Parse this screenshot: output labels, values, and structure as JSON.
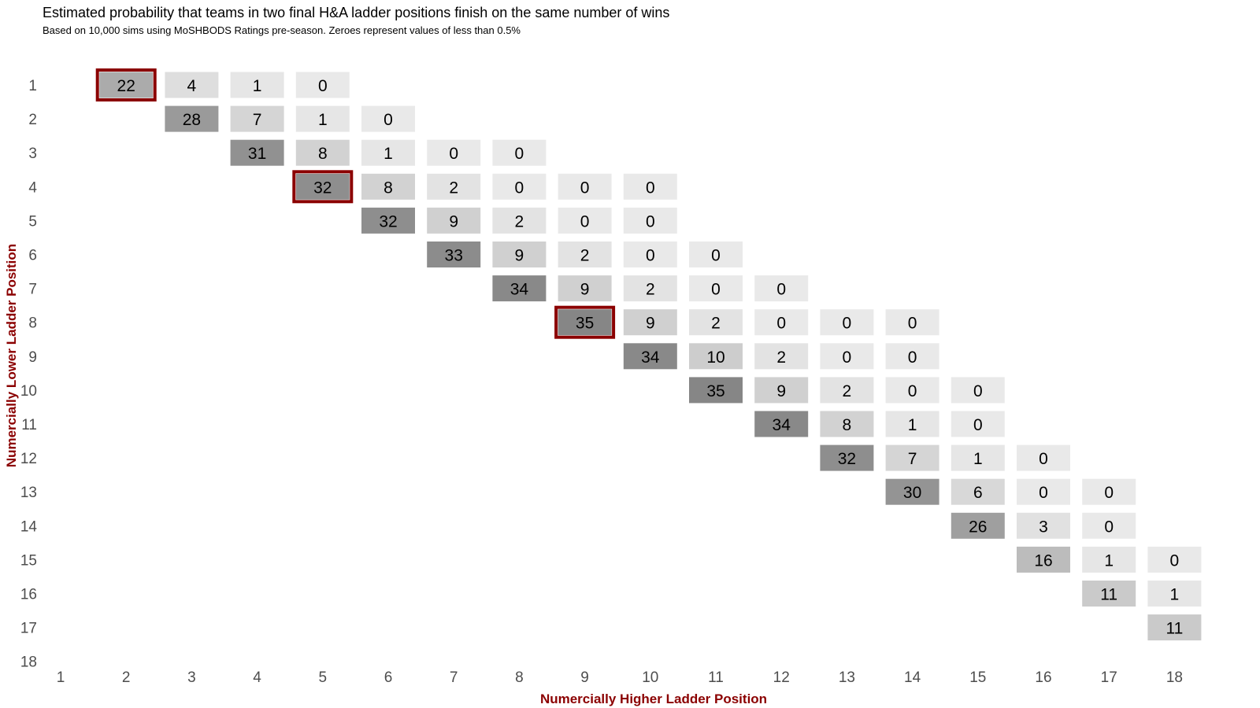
{
  "title": "Estimated probability that teams in two final H&A ladder positions finish on the same number of wins",
  "subtitle": "Based on 10,000 sims using MoSHBODS Ratings pre-season. Zeroes represent values of less than 0.5%",
  "colors": {
    "highlight_border": "#8b0000",
    "axis_title": "#8b0000",
    "tick_text": "#4d4d4d",
    "tile_light": "#e8e8e8",
    "tile_dark": "#868686"
  },
  "chart_data": {
    "type": "heatmap",
    "title": "Estimated probability that teams in two final H&A ladder positions finish on the same number of wins",
    "subtitle": "Based on 10,000 sims using MoSHBODS Ratings pre-season. Zeroes represent values of less than 0.5%",
    "xlabel": "Numercially Higher Ladder Position",
    "ylabel": "Numercially Lower Ladder Position",
    "x_categories": [
      "1",
      "2",
      "3",
      "4",
      "5",
      "6",
      "7",
      "8",
      "9",
      "10",
      "11",
      "12",
      "13",
      "14",
      "15",
      "16",
      "17",
      "18"
    ],
    "y_categories": [
      "1",
      "2",
      "3",
      "4",
      "5",
      "6",
      "7",
      "8",
      "9",
      "10",
      "11",
      "12",
      "13",
      "14",
      "15",
      "16",
      "17",
      "18"
    ],
    "grid": false,
    "legend": "none",
    "cells": [
      {
        "row": 1,
        "col": 2,
        "value": 22,
        "highlight": true
      },
      {
        "row": 1,
        "col": 3,
        "value": 4
      },
      {
        "row": 1,
        "col": 4,
        "value": 1
      },
      {
        "row": 1,
        "col": 5,
        "value": 0
      },
      {
        "row": 2,
        "col": 3,
        "value": 28
      },
      {
        "row": 2,
        "col": 4,
        "value": 7
      },
      {
        "row": 2,
        "col": 5,
        "value": 1
      },
      {
        "row": 2,
        "col": 6,
        "value": 0
      },
      {
        "row": 3,
        "col": 4,
        "value": 31
      },
      {
        "row": 3,
        "col": 5,
        "value": 8
      },
      {
        "row": 3,
        "col": 6,
        "value": 1
      },
      {
        "row": 3,
        "col": 7,
        "value": 0
      },
      {
        "row": 3,
        "col": 8,
        "value": 0
      },
      {
        "row": 4,
        "col": 5,
        "value": 32,
        "highlight": true
      },
      {
        "row": 4,
        "col": 6,
        "value": 8
      },
      {
        "row": 4,
        "col": 7,
        "value": 2
      },
      {
        "row": 4,
        "col": 8,
        "value": 0
      },
      {
        "row": 4,
        "col": 9,
        "value": 0
      },
      {
        "row": 4,
        "col": 10,
        "value": 0
      },
      {
        "row": 5,
        "col": 6,
        "value": 32
      },
      {
        "row": 5,
        "col": 7,
        "value": 9
      },
      {
        "row": 5,
        "col": 8,
        "value": 2
      },
      {
        "row": 5,
        "col": 9,
        "value": 0
      },
      {
        "row": 5,
        "col": 10,
        "value": 0
      },
      {
        "row": 6,
        "col": 7,
        "value": 33
      },
      {
        "row": 6,
        "col": 8,
        "value": 9
      },
      {
        "row": 6,
        "col": 9,
        "value": 2
      },
      {
        "row": 6,
        "col": 10,
        "value": 0
      },
      {
        "row": 6,
        "col": 11,
        "value": 0
      },
      {
        "row": 7,
        "col": 8,
        "value": 34
      },
      {
        "row": 7,
        "col": 9,
        "value": 9
      },
      {
        "row": 7,
        "col": 10,
        "value": 2
      },
      {
        "row": 7,
        "col": 11,
        "value": 0
      },
      {
        "row": 7,
        "col": 12,
        "value": 0
      },
      {
        "row": 8,
        "col": 9,
        "value": 35,
        "highlight": true
      },
      {
        "row": 8,
        "col": 10,
        "value": 9
      },
      {
        "row": 8,
        "col": 11,
        "value": 2
      },
      {
        "row": 8,
        "col": 12,
        "value": 0
      },
      {
        "row": 8,
        "col": 13,
        "value": 0
      },
      {
        "row": 8,
        "col": 14,
        "value": 0
      },
      {
        "row": 9,
        "col": 10,
        "value": 34
      },
      {
        "row": 9,
        "col": 11,
        "value": 10
      },
      {
        "row": 9,
        "col": 12,
        "value": 2
      },
      {
        "row": 9,
        "col": 13,
        "value": 0
      },
      {
        "row": 9,
        "col": 14,
        "value": 0
      },
      {
        "row": 10,
        "col": 11,
        "value": 35
      },
      {
        "row": 10,
        "col": 12,
        "value": 9
      },
      {
        "row": 10,
        "col": 13,
        "value": 2
      },
      {
        "row": 10,
        "col": 14,
        "value": 0
      },
      {
        "row": 10,
        "col": 15,
        "value": 0
      },
      {
        "row": 11,
        "col": 12,
        "value": 34
      },
      {
        "row": 11,
        "col": 13,
        "value": 8
      },
      {
        "row": 11,
        "col": 14,
        "value": 1
      },
      {
        "row": 11,
        "col": 15,
        "value": 0
      },
      {
        "row": 12,
        "col": 13,
        "value": 32
      },
      {
        "row": 12,
        "col": 14,
        "value": 7
      },
      {
        "row": 12,
        "col": 15,
        "value": 1
      },
      {
        "row": 12,
        "col": 16,
        "value": 0
      },
      {
        "row": 13,
        "col": 14,
        "value": 30
      },
      {
        "row": 13,
        "col": 15,
        "value": 6
      },
      {
        "row": 13,
        "col": 16,
        "value": 0
      },
      {
        "row": 13,
        "col": 17,
        "value": 0
      },
      {
        "row": 14,
        "col": 15,
        "value": 26
      },
      {
        "row": 14,
        "col": 16,
        "value": 3
      },
      {
        "row": 14,
        "col": 17,
        "value": 0
      },
      {
        "row": 15,
        "col": 16,
        "value": 16
      },
      {
        "row": 15,
        "col": 17,
        "value": 1
      },
      {
        "row": 15,
        "col": 18,
        "value": 0
      },
      {
        "row": 16,
        "col": 17,
        "value": 11
      },
      {
        "row": 16,
        "col": 18,
        "value": 1
      },
      {
        "row": 17,
        "col": 18,
        "value": 11
      }
    ]
  }
}
